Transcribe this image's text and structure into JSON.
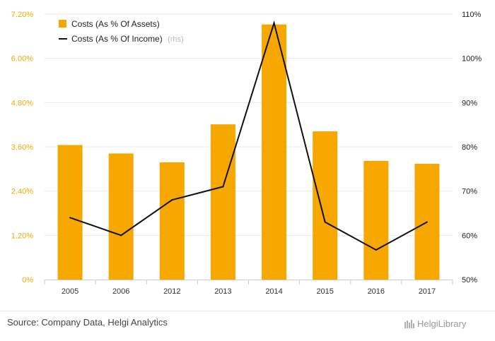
{
  "chart_data": {
    "type": "bar+line",
    "categories": [
      "2005",
      "2006",
      "2012",
      "2013",
      "2014",
      "2015",
      "2016",
      "2017"
    ],
    "series": [
      {
        "name": "Costs (As % Of Assets)",
        "type": "bar",
        "axis": "left",
        "values": [
          3.65,
          3.42,
          3.18,
          4.21,
          6.92,
          4.02,
          3.22,
          3.14
        ],
        "color": "#f7a800"
      },
      {
        "name": "Costs (As % Of Income)",
        "name_suffix": "(rhs)",
        "type": "line",
        "axis": "right",
        "values": [
          64.0,
          60.0,
          68.0,
          71.0,
          108.0,
          63.0,
          56.7,
          63.0
        ],
        "color": "#111111"
      }
    ],
    "y_left": {
      "ticks": [
        "0%",
        "1.20%",
        "2.40%",
        "3.60%",
        "4.80%",
        "6.00%",
        "7.20%"
      ],
      "range": [
        0,
        7.2
      ]
    },
    "y_right": {
      "ticks": [
        "50%",
        "60%",
        "70%",
        "80%",
        "90%",
        "100%",
        "110%"
      ],
      "range": [
        50,
        110
      ]
    },
    "grid": true,
    "legend_position": "top-left"
  },
  "footer": {
    "source": "Source: Company Data, Helgi Analytics",
    "brand": "HelgiLibrary"
  }
}
